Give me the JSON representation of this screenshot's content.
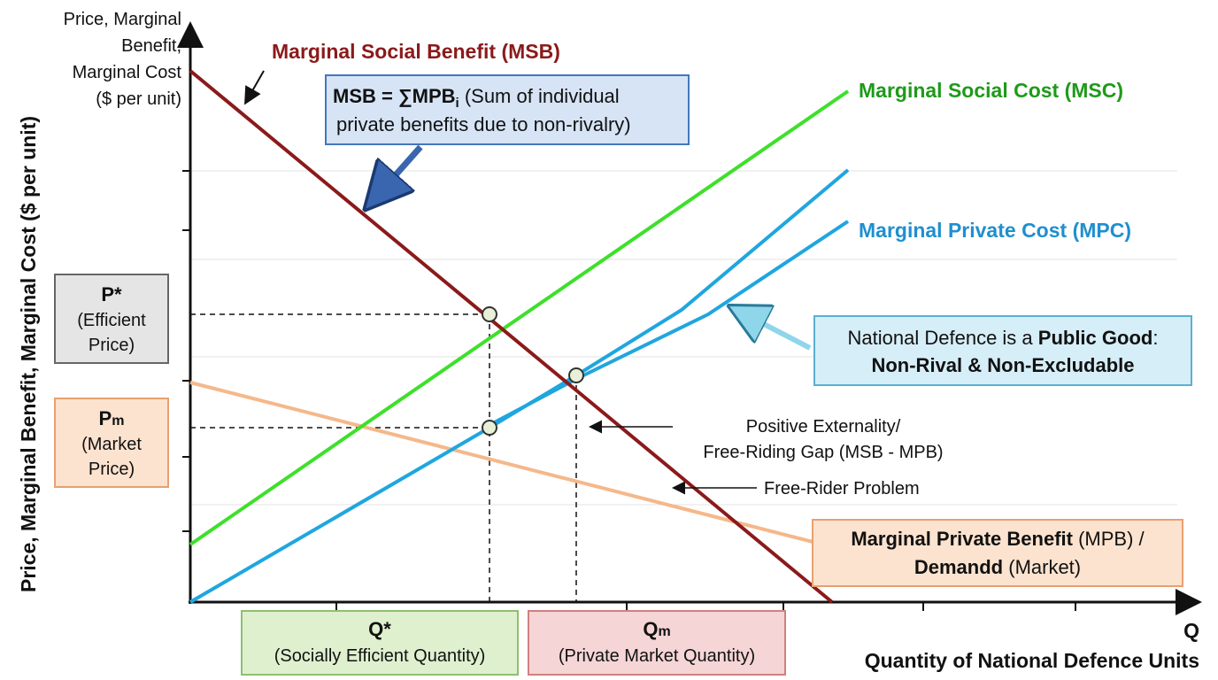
{
  "y_axis": {
    "corner_label": [
      "Price, Marginal",
      "Benefit,",
      "Marginal Cost",
      "($ per unit)"
    ],
    "title": "Price, Marginal Benefit, Marginal Cost ($ per unit)"
  },
  "x_axis": {
    "symbol": "Q",
    "title": "Quantity of National Defence Units"
  },
  "curves": {
    "msb": "Marginal Social Benefit (MSB)",
    "msc": "Marginal Social Cost (MSC)",
    "mpc": "Marginal Private Cost (MPC)",
    "mpb": {
      "bold1": "Marginal Private Benefit",
      "rest1": " (MPB) /",
      "bold2": "Demandd",
      "rest2": " (Market)"
    }
  },
  "callouts": {
    "msb_sum": {
      "bold": "MSB = ∑MPB",
      "sub": "i",
      "rest1": " (Sum of individual",
      "line2": "private benefits due to non-rivalry)"
    },
    "public_good": {
      "pre": "National Defence is a ",
      "bold": "Public Good",
      "post": ":",
      "line2": "Non-Rival & Non-Excludable"
    },
    "externality": [
      "Positive Externality/",
      "Free-Riding Gap (MSB - MPB)"
    ],
    "free_rider": "Free-Rider Problem"
  },
  "boxes": {
    "p_star": {
      "symbol": "P*",
      "lines": [
        "(Efficient",
        "Price)"
      ]
    },
    "p_m": {
      "symbol": "P",
      "sub": "m",
      "lines": [
        "(Market",
        "Price)"
      ]
    },
    "q_star": {
      "symbol": "Q*",
      "line": "(Socially Efficient Quantity)"
    },
    "q_m": {
      "symbol": "Q",
      "sub": "m",
      "line": "(Private Market Quantity)"
    }
  }
}
